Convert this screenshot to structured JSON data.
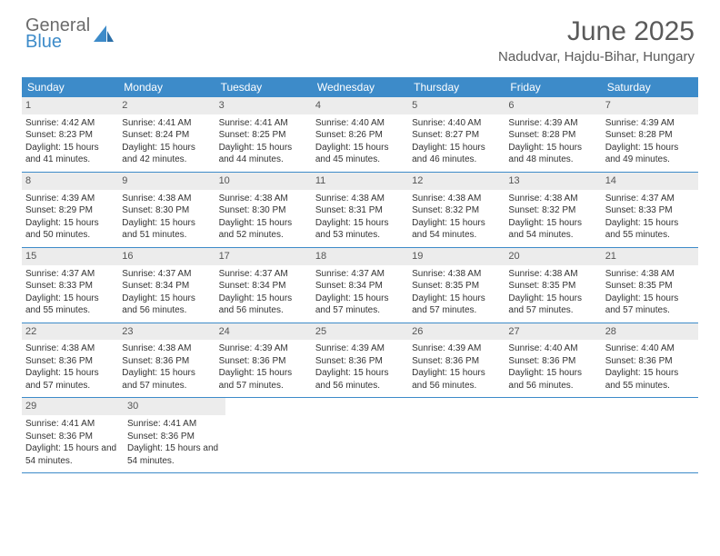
{
  "logo": {
    "line1": "General",
    "line2": "Blue"
  },
  "title": "June 2025",
  "location": "Nadudvar, Hajdu-Bihar, Hungary",
  "colors": {
    "header_bg": "#3d8bc9",
    "header_text": "#ffffff",
    "daynum_bg": "#ececec",
    "border": "#3d8bc9",
    "body_text": "#333333",
    "title_text": "#5a5a5a"
  },
  "weekdays": [
    "Sunday",
    "Monday",
    "Tuesday",
    "Wednesday",
    "Thursday",
    "Friday",
    "Saturday"
  ],
  "weeks": [
    [
      {
        "n": "1",
        "sr": "4:42 AM",
        "ss": "8:23 PM",
        "dl": "15 hours and 41 minutes."
      },
      {
        "n": "2",
        "sr": "4:41 AM",
        "ss": "8:24 PM",
        "dl": "15 hours and 42 minutes."
      },
      {
        "n": "3",
        "sr": "4:41 AM",
        "ss": "8:25 PM",
        "dl": "15 hours and 44 minutes."
      },
      {
        "n": "4",
        "sr": "4:40 AM",
        "ss": "8:26 PM",
        "dl": "15 hours and 45 minutes."
      },
      {
        "n": "5",
        "sr": "4:40 AM",
        "ss": "8:27 PM",
        "dl": "15 hours and 46 minutes."
      },
      {
        "n": "6",
        "sr": "4:39 AM",
        "ss": "8:28 PM",
        "dl": "15 hours and 48 minutes."
      },
      {
        "n": "7",
        "sr": "4:39 AM",
        "ss": "8:28 PM",
        "dl": "15 hours and 49 minutes."
      }
    ],
    [
      {
        "n": "8",
        "sr": "4:39 AM",
        "ss": "8:29 PM",
        "dl": "15 hours and 50 minutes."
      },
      {
        "n": "9",
        "sr": "4:38 AM",
        "ss": "8:30 PM",
        "dl": "15 hours and 51 minutes."
      },
      {
        "n": "10",
        "sr": "4:38 AM",
        "ss": "8:30 PM",
        "dl": "15 hours and 52 minutes."
      },
      {
        "n": "11",
        "sr": "4:38 AM",
        "ss": "8:31 PM",
        "dl": "15 hours and 53 minutes."
      },
      {
        "n": "12",
        "sr": "4:38 AM",
        "ss": "8:32 PM",
        "dl": "15 hours and 54 minutes."
      },
      {
        "n": "13",
        "sr": "4:38 AM",
        "ss": "8:32 PM",
        "dl": "15 hours and 54 minutes."
      },
      {
        "n": "14",
        "sr": "4:37 AM",
        "ss": "8:33 PM",
        "dl": "15 hours and 55 minutes."
      }
    ],
    [
      {
        "n": "15",
        "sr": "4:37 AM",
        "ss": "8:33 PM",
        "dl": "15 hours and 55 minutes."
      },
      {
        "n": "16",
        "sr": "4:37 AM",
        "ss": "8:34 PM",
        "dl": "15 hours and 56 minutes."
      },
      {
        "n": "17",
        "sr": "4:37 AM",
        "ss": "8:34 PM",
        "dl": "15 hours and 56 minutes."
      },
      {
        "n": "18",
        "sr": "4:37 AM",
        "ss": "8:34 PM",
        "dl": "15 hours and 57 minutes."
      },
      {
        "n": "19",
        "sr": "4:38 AM",
        "ss": "8:35 PM",
        "dl": "15 hours and 57 minutes."
      },
      {
        "n": "20",
        "sr": "4:38 AM",
        "ss": "8:35 PM",
        "dl": "15 hours and 57 minutes."
      },
      {
        "n": "21",
        "sr": "4:38 AM",
        "ss": "8:35 PM",
        "dl": "15 hours and 57 minutes."
      }
    ],
    [
      {
        "n": "22",
        "sr": "4:38 AM",
        "ss": "8:36 PM",
        "dl": "15 hours and 57 minutes."
      },
      {
        "n": "23",
        "sr": "4:38 AM",
        "ss": "8:36 PM",
        "dl": "15 hours and 57 minutes."
      },
      {
        "n": "24",
        "sr": "4:39 AM",
        "ss": "8:36 PM",
        "dl": "15 hours and 57 minutes."
      },
      {
        "n": "25",
        "sr": "4:39 AM",
        "ss": "8:36 PM",
        "dl": "15 hours and 56 minutes."
      },
      {
        "n": "26",
        "sr": "4:39 AM",
        "ss": "8:36 PM",
        "dl": "15 hours and 56 minutes."
      },
      {
        "n": "27",
        "sr": "4:40 AM",
        "ss": "8:36 PM",
        "dl": "15 hours and 56 minutes."
      },
      {
        "n": "28",
        "sr": "4:40 AM",
        "ss": "8:36 PM",
        "dl": "15 hours and 55 minutes."
      }
    ],
    [
      {
        "n": "29",
        "sr": "4:41 AM",
        "ss": "8:36 PM",
        "dl": "15 hours and 54 minutes."
      },
      {
        "n": "30",
        "sr": "4:41 AM",
        "ss": "8:36 PM",
        "dl": "15 hours and 54 minutes."
      },
      null,
      null,
      null,
      null,
      null
    ]
  ],
  "labels": {
    "sunrise": "Sunrise: ",
    "sunset": "Sunset: ",
    "daylight": "Daylight: "
  }
}
